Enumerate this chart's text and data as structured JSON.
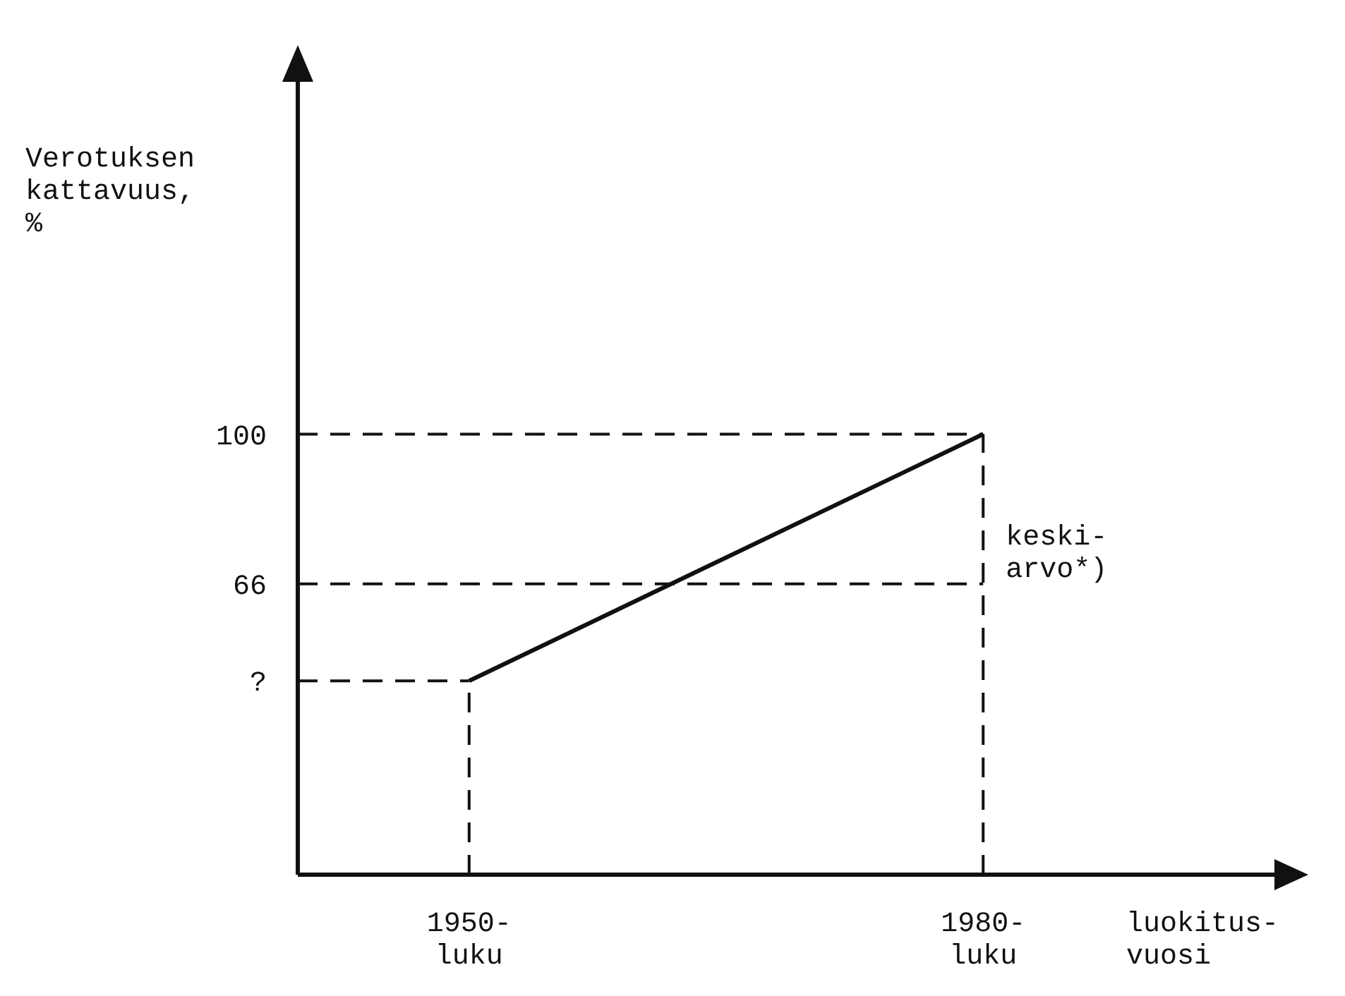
{
  "chart_data": {
    "type": "line",
    "xlabel": "luokitus-\nvuosi",
    "ylabel": "Verotuksen\nkattavuus,\n%",
    "series": [
      {
        "color": "#111111",
        "x": [
          1950,
          1980
        ],
        "values": [
          44,
          100
        ]
      }
    ],
    "xlim": [
      1940,
      1997
    ],
    "ylim": [
      0,
      180
    ],
    "xticks": [
      {
        "value": 1950,
        "label": "1950-\nluku"
      },
      {
        "value": 1980,
        "label": "1980-\nluku"
      }
    ],
    "yticks": [
      {
        "value": 44,
        "label": "?"
      },
      66,
      100
    ],
    "ref_lines": [
      {
        "axis": "y",
        "value": 100,
        "label": null,
        "line_style": "dashed"
      },
      {
        "axis": "y",
        "value": 66,
        "label": "keski-\narvo*)",
        "line_style": "dashed"
      },
      {
        "axis": "y",
        "value": 44,
        "label": null,
        "line_style": "dashed"
      },
      {
        "axis": "x",
        "value": 1950,
        "label": null,
        "line_style": "dashed"
      },
      {
        "axis": "x",
        "value": 1980,
        "label": null,
        "line_style": "dashed"
      }
    ],
    "marker": "none",
    "line_style": "solid"
  }
}
